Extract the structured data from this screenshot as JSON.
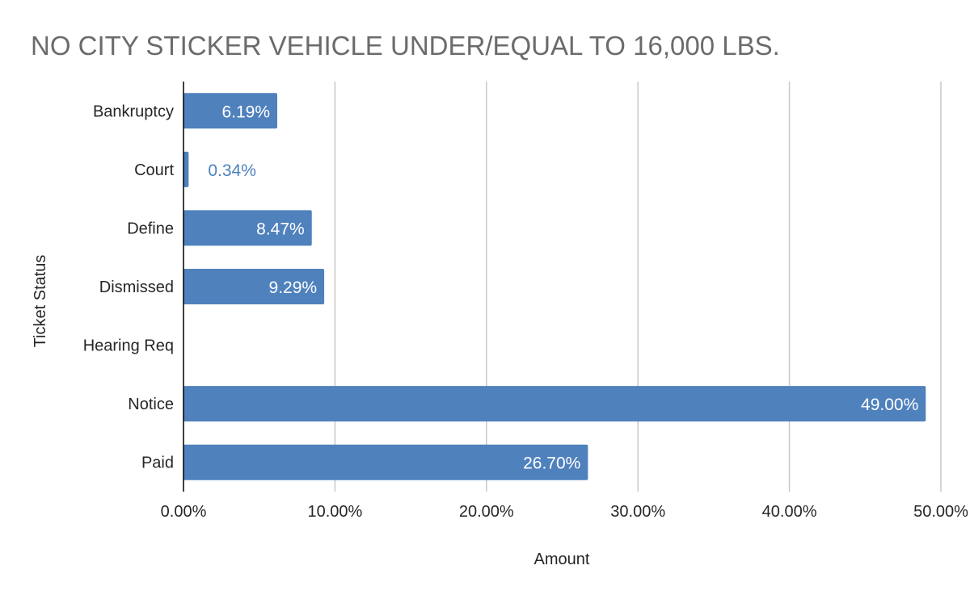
{
  "chart_data": {
    "type": "bar",
    "orientation": "horizontal",
    "title": "NO CITY STICKER VEHICLE UNDER/EQUAL TO 16,000 LBS.",
    "xlabel": "Amount",
    "ylabel": "Ticket Status",
    "categories": [
      "Bankruptcy",
      "Court",
      "Define",
      "Dismissed",
      "Hearing Req",
      "Notice",
      "Paid"
    ],
    "values": [
      6.19,
      0.34,
      8.47,
      9.29,
      0,
      49.0,
      26.7
    ],
    "data_labels": [
      "6.19%",
      "0.34%",
      "8.47%",
      "9.29%",
      "",
      "49.00%",
      "26.70%"
    ],
    "xlim": [
      0,
      50
    ],
    "xticks": [
      0,
      10,
      20,
      30,
      40,
      50
    ],
    "xtick_labels": [
      "0.00%",
      "10.00%",
      "20.00%",
      "30.00%",
      "40.00%",
      "50.00%"
    ],
    "grid": "vertical",
    "legend": "none",
    "bar_color": "#4f81bd"
  }
}
